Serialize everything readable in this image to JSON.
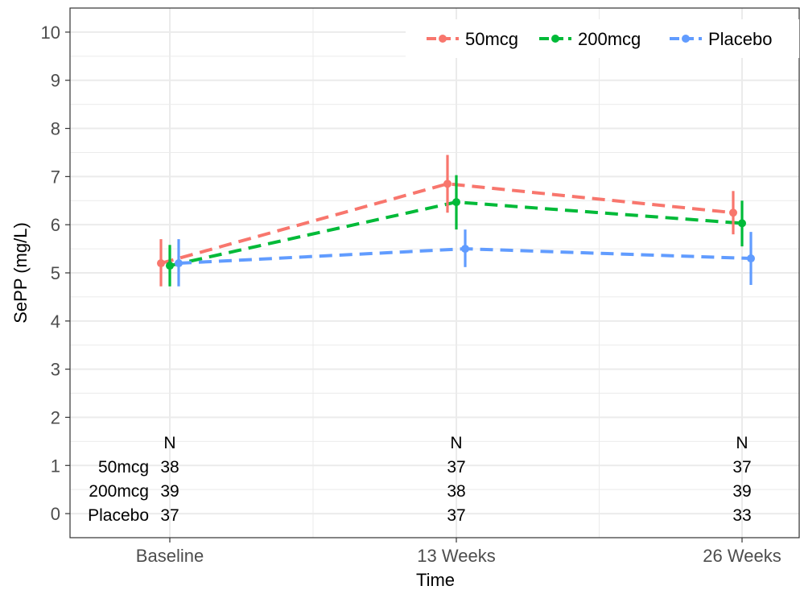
{
  "chart_data": {
    "type": "line",
    "title": "",
    "xlabel": "Time",
    "ylabel": "SePP (mg/L)",
    "categories": [
      "Baseline",
      "13 Weeks",
      "26 Weeks"
    ],
    "ylim": [
      -0.5,
      10.5
    ],
    "yticks": [
      0,
      1,
      2,
      3,
      4,
      5,
      6,
      7,
      8,
      9,
      10
    ],
    "grid": true,
    "legend_position": "top-right",
    "line_style": "dashed",
    "error_bars": true,
    "series": [
      {
        "name": "50mcg",
        "color": "#F8766D",
        "values": [
          5.2,
          6.85,
          6.25
        ],
        "lower": [
          4.72,
          6.25,
          5.8
        ],
        "upper": [
          5.7,
          7.45,
          6.7
        ]
      },
      {
        "name": "200mcg",
        "color": "#00BA38",
        "values": [
          5.15,
          6.47,
          6.03
        ],
        "lower": [
          4.72,
          5.9,
          5.55
        ],
        "upper": [
          5.58,
          7.03,
          6.5
        ]
      },
      {
        "name": "Placebo",
        "color": "#619CFF",
        "values": [
          5.2,
          5.5,
          5.3
        ],
        "lower": [
          4.72,
          5.12,
          4.75
        ],
        "upper": [
          5.7,
          5.9,
          5.85
        ]
      }
    ],
    "n_table": {
      "header": "N",
      "rows": [
        {
          "label": "50mcg",
          "counts": [
            "38",
            "37",
            "37"
          ]
        },
        {
          "label": "200mcg",
          "counts": [
            "39",
            "38",
            "39"
          ]
        },
        {
          "label": "Placebo",
          "counts": [
            "37",
            "37",
            "33"
          ]
        }
      ]
    }
  }
}
